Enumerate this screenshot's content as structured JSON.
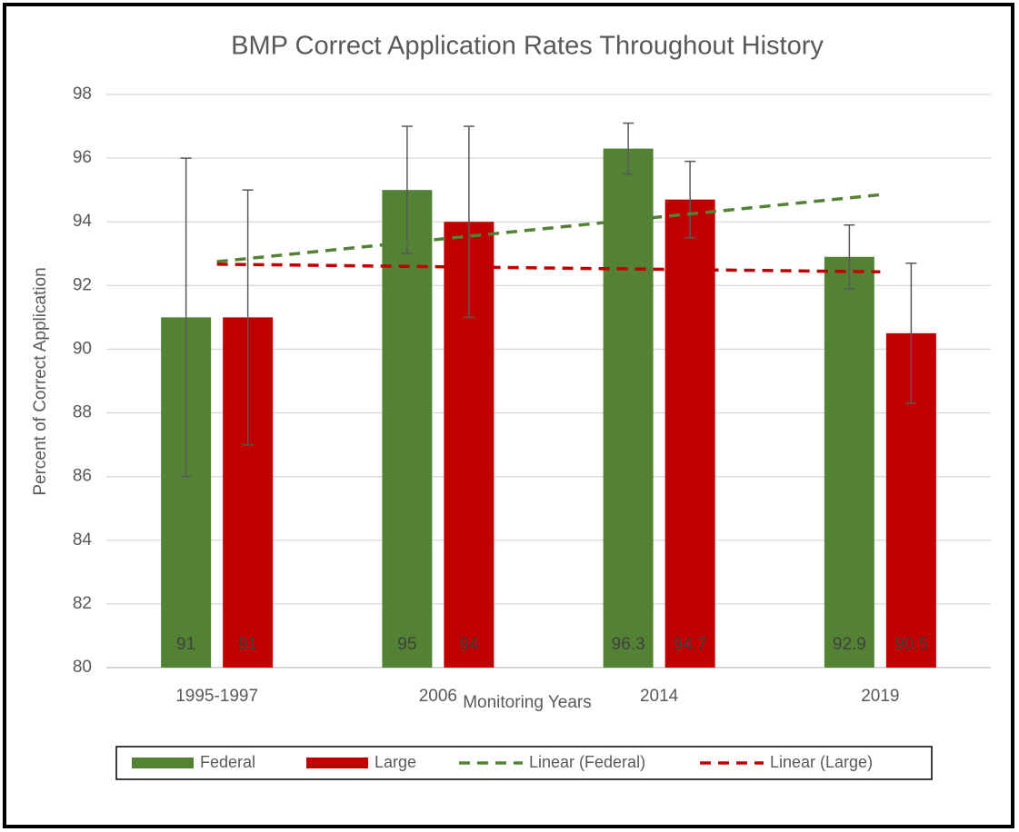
{
  "chart_data": {
    "type": "bar",
    "title": "BMP Correct Application Rates Throughout History",
    "xlabel": "Monitoring Years",
    "ylabel": "Percent of Correct Application",
    "categories": [
      "1995-1997",
      "2006",
      "2014",
      "2019"
    ],
    "series": [
      {
        "name": "Federal",
        "color": "#548235",
        "values": [
          91,
          95,
          96.3,
          92.9
        ],
        "errors": [
          5,
          2,
          0.8,
          1.0
        ],
        "trendline": {
          "name": "Linear (Federal)",
          "type": "linear",
          "style": "dashed"
        }
      },
      {
        "name": "Large",
        "color": "#c00000",
        "values": [
          91,
          94,
          94.7,
          90.5
        ],
        "errors": [
          4,
          3,
          1.2,
          2.2
        ],
        "trendline": {
          "name": "Linear (Large)",
          "type": "linear",
          "style": "dashed"
        }
      }
    ],
    "ylim": [
      80,
      98
    ],
    "yticks": [
      80,
      82,
      84,
      86,
      88,
      90,
      92,
      94,
      96,
      98
    ],
    "grid": true,
    "legend": "bottom",
    "data_labels": true
  }
}
